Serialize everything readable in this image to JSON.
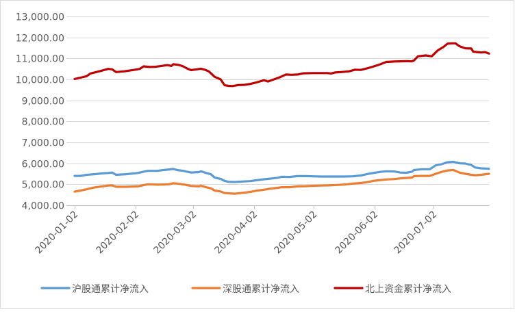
{
  "chart_data": {
    "type": "line",
    "title": "",
    "xlabel": "",
    "ylabel": "",
    "ylim": [
      4000,
      13000
    ],
    "y_ticks": [
      4000,
      5000,
      6000,
      7000,
      8000,
      9000,
      10000,
      11000,
      12000,
      13000
    ],
    "y_tick_labels": [
      "4,000.00",
      "5,000.00",
      "6,000.00",
      "7,000.00",
      "8,000.00",
      "9,000.00",
      "10,000.00",
      "11,000.00",
      "12,000.00",
      "13,000.00"
    ],
    "x_range": [
      "2020-01-02",
      "2020-07-30"
    ],
    "x_ticks": [
      "2020-01-02",
      "2020-02-02",
      "2020-03-02",
      "2020-04-02",
      "2020-05-02",
      "2020-06-02",
      "2020-07-02"
    ],
    "grid": "horizontal",
    "legend_position": "bottom",
    "series": [
      {
        "name": "沪股通累计净流入",
        "color": "#5B9BD5",
        "points": [
          [
            "2020-01-02",
            5400
          ],
          [
            "2020-01-05",
            5400
          ],
          [
            "2020-01-08",
            5450
          ],
          [
            "2020-01-12",
            5480
          ],
          [
            "2020-01-16",
            5520
          ],
          [
            "2020-01-19",
            5540
          ],
          [
            "2020-01-21",
            5560
          ],
          [
            "2020-01-23",
            5450
          ],
          [
            "2020-01-28",
            5480
          ],
          [
            "2020-02-03",
            5540
          ],
          [
            "2020-02-06",
            5600
          ],
          [
            "2020-02-08",
            5640
          ],
          [
            "2020-02-13",
            5640
          ],
          [
            "2020-02-16",
            5680
          ],
          [
            "2020-02-19",
            5710
          ],
          [
            "2020-02-21",
            5730
          ],
          [
            "2020-02-23",
            5680
          ],
          [
            "2020-02-26",
            5640
          ],
          [
            "2020-03-01",
            5560
          ],
          [
            "2020-03-05",
            5580
          ],
          [
            "2020-03-06",
            5620
          ],
          [
            "2020-03-09",
            5530
          ],
          [
            "2020-03-11",
            5480
          ],
          [
            "2020-03-13",
            5320
          ],
          [
            "2020-03-16",
            5260
          ],
          [
            "2020-03-18",
            5160
          ],
          [
            "2020-03-20",
            5120
          ],
          [
            "2020-03-23",
            5110
          ],
          [
            "2020-03-27",
            5130
          ],
          [
            "2020-03-31",
            5150
          ],
          [
            "2020-04-03",
            5190
          ],
          [
            "2020-04-07",
            5240
          ],
          [
            "2020-04-10",
            5270
          ],
          [
            "2020-04-14",
            5310
          ],
          [
            "2020-04-16",
            5360
          ],
          [
            "2020-04-20",
            5350
          ],
          [
            "2020-04-24",
            5390
          ],
          [
            "2020-04-28",
            5390
          ],
          [
            "2020-05-02",
            5380
          ],
          [
            "2020-05-06",
            5370
          ],
          [
            "2020-05-10",
            5370
          ],
          [
            "2020-05-14",
            5370
          ],
          [
            "2020-05-18",
            5370
          ],
          [
            "2020-05-22",
            5380
          ],
          [
            "2020-05-26",
            5420
          ],
          [
            "2020-05-29",
            5480
          ],
          [
            "2020-06-02",
            5550
          ],
          [
            "2020-06-05",
            5590
          ],
          [
            "2020-06-08",
            5620
          ],
          [
            "2020-06-12",
            5610
          ],
          [
            "2020-06-15",
            5560
          ],
          [
            "2020-06-18",
            5550
          ],
          [
            "2020-06-21",
            5600
          ],
          [
            "2020-06-22",
            5680
          ],
          [
            "2020-06-26",
            5720
          ],
          [
            "2020-06-30",
            5720
          ],
          [
            "2020-07-03",
            5900
          ],
          [
            "2020-07-06",
            5960
          ],
          [
            "2020-07-09",
            6050
          ],
          [
            "2020-07-12",
            6070
          ],
          [
            "2020-07-15",
            6000
          ],
          [
            "2020-07-18",
            5990
          ],
          [
            "2020-07-21",
            5920
          ],
          [
            "2020-07-23",
            5800
          ],
          [
            "2020-07-26",
            5760
          ],
          [
            "2020-07-30",
            5740
          ]
        ]
      },
      {
        "name": "深股通累计净流入",
        "color": "#ED7D31",
        "points": [
          [
            "2020-01-02",
            4650
          ],
          [
            "2020-01-05",
            4700
          ],
          [
            "2020-01-08",
            4760
          ],
          [
            "2020-01-12",
            4850
          ],
          [
            "2020-01-16",
            4900
          ],
          [
            "2020-01-19",
            4940
          ],
          [
            "2020-01-21",
            4950
          ],
          [
            "2020-01-23",
            4880
          ],
          [
            "2020-01-28",
            4880
          ],
          [
            "2020-02-03",
            4900
          ],
          [
            "2020-02-06",
            4960
          ],
          [
            "2020-02-08",
            5000
          ],
          [
            "2020-02-13",
            4980
          ],
          [
            "2020-02-16",
            4990
          ],
          [
            "2020-02-19",
            5000
          ],
          [
            "2020-02-21",
            5050
          ],
          [
            "2020-02-24",
            5020
          ],
          [
            "2020-02-27",
            4980
          ],
          [
            "2020-03-01",
            4920
          ],
          [
            "2020-03-05",
            4900
          ],
          [
            "2020-03-06",
            4930
          ],
          [
            "2020-03-09",
            4850
          ],
          [
            "2020-03-11",
            4810
          ],
          [
            "2020-03-13",
            4700
          ],
          [
            "2020-03-16",
            4660
          ],
          [
            "2020-03-18",
            4580
          ],
          [
            "2020-03-20",
            4570
          ],
          [
            "2020-03-23",
            4550
          ],
          [
            "2020-03-27",
            4590
          ],
          [
            "2020-03-31",
            4640
          ],
          [
            "2020-04-03",
            4690
          ],
          [
            "2020-04-07",
            4740
          ],
          [
            "2020-04-10",
            4790
          ],
          [
            "2020-04-14",
            4830
          ],
          [
            "2020-04-16",
            4860
          ],
          [
            "2020-04-20",
            4860
          ],
          [
            "2020-04-24",
            4900
          ],
          [
            "2020-04-28",
            4910
          ],
          [
            "2020-05-02",
            4930
          ],
          [
            "2020-05-06",
            4940
          ],
          [
            "2020-05-10",
            4950
          ],
          [
            "2020-05-14",
            4970
          ],
          [
            "2020-05-18",
            4990
          ],
          [
            "2020-05-22",
            5030
          ],
          [
            "2020-05-26",
            5060
          ],
          [
            "2020-05-29",
            5100
          ],
          [
            "2020-06-02",
            5170
          ],
          [
            "2020-06-05",
            5200
          ],
          [
            "2020-06-08",
            5230
          ],
          [
            "2020-06-12",
            5250
          ],
          [
            "2020-06-15",
            5280
          ],
          [
            "2020-06-18",
            5300
          ],
          [
            "2020-06-21",
            5320
          ],
          [
            "2020-06-22",
            5390
          ],
          [
            "2020-06-26",
            5400
          ],
          [
            "2020-06-30",
            5400
          ],
          [
            "2020-07-03",
            5500
          ],
          [
            "2020-07-06",
            5590
          ],
          [
            "2020-07-09",
            5660
          ],
          [
            "2020-07-12",
            5680
          ],
          [
            "2020-07-15",
            5560
          ],
          [
            "2020-07-18",
            5500
          ],
          [
            "2020-07-21",
            5450
          ],
          [
            "2020-07-23",
            5430
          ],
          [
            "2020-07-26",
            5450
          ],
          [
            "2020-07-30",
            5500
          ]
        ]
      },
      {
        "name": "北上资金累计净流入",
        "color": "#C00000",
        "points": [
          [
            "2020-01-02",
            10020
          ],
          [
            "2020-01-05",
            10080
          ],
          [
            "2020-01-08",
            10150
          ],
          [
            "2020-01-10",
            10280
          ],
          [
            "2020-01-13",
            10350
          ],
          [
            "2020-01-16",
            10420
          ],
          [
            "2020-01-19",
            10500
          ],
          [
            "2020-01-21",
            10480
          ],
          [
            "2020-01-23",
            10350
          ],
          [
            "2020-01-27",
            10380
          ],
          [
            "2020-02-01",
            10450
          ],
          [
            "2020-02-04",
            10500
          ],
          [
            "2020-02-06",
            10620
          ],
          [
            "2020-02-09",
            10590
          ],
          [
            "2020-02-12",
            10600
          ],
          [
            "2020-02-15",
            10640
          ],
          [
            "2020-02-18",
            10680
          ],
          [
            "2020-02-20",
            10640
          ],
          [
            "2020-02-21",
            10720
          ],
          [
            "2020-02-24",
            10680
          ],
          [
            "2020-02-26",
            10620
          ],
          [
            "2020-02-28",
            10520
          ],
          [
            "2020-03-01",
            10440
          ],
          [
            "2020-03-04",
            10480
          ],
          [
            "2020-03-06",
            10510
          ],
          [
            "2020-03-08",
            10460
          ],
          [
            "2020-03-10",
            10380
          ],
          [
            "2020-03-13",
            10120
          ],
          [
            "2020-03-16",
            10000
          ],
          [
            "2020-03-18",
            9720
          ],
          [
            "2020-03-20",
            9690
          ],
          [
            "2020-03-22",
            9680
          ],
          [
            "2020-03-25",
            9730
          ],
          [
            "2020-03-28",
            9740
          ],
          [
            "2020-03-31",
            9780
          ],
          [
            "2020-04-03",
            9850
          ],
          [
            "2020-04-07",
            9960
          ],
          [
            "2020-04-09",
            9900
          ],
          [
            "2020-04-12",
            10000
          ],
          [
            "2020-04-15",
            10100
          ],
          [
            "2020-04-18",
            10230
          ],
          [
            "2020-04-21",
            10220
          ],
          [
            "2020-04-24",
            10230
          ],
          [
            "2020-04-27",
            10290
          ],
          [
            "2020-05-02",
            10300
          ],
          [
            "2020-05-06",
            10300
          ],
          [
            "2020-05-09",
            10300
          ],
          [
            "2020-05-11",
            10280
          ],
          [
            "2020-05-13",
            10330
          ],
          [
            "2020-05-16",
            10350
          ],
          [
            "2020-05-20",
            10380
          ],
          [
            "2020-05-23",
            10460
          ],
          [
            "2020-05-26",
            10450
          ],
          [
            "2020-05-29",
            10520
          ],
          [
            "2020-06-01",
            10600
          ],
          [
            "2020-06-05",
            10720
          ],
          [
            "2020-06-08",
            10830
          ],
          [
            "2020-06-12",
            10850
          ],
          [
            "2020-06-15",
            10860
          ],
          [
            "2020-06-18",
            10870
          ],
          [
            "2020-06-21",
            10860
          ],
          [
            "2020-06-22",
            10900
          ],
          [
            "2020-06-24",
            11100
          ],
          [
            "2020-06-28",
            11140
          ],
          [
            "2020-07-01",
            11100
          ],
          [
            "2020-07-04",
            11380
          ],
          [
            "2020-07-07",
            11550
          ],
          [
            "2020-07-09",
            11700
          ],
          [
            "2020-07-11",
            11720
          ],
          [
            "2020-07-13",
            11720
          ],
          [
            "2020-07-15",
            11580
          ],
          [
            "2020-07-18",
            11480
          ],
          [
            "2020-07-21",
            11470
          ],
          [
            "2020-07-22",
            11320
          ],
          [
            "2020-07-26",
            11280
          ],
          [
            "2020-07-28",
            11300
          ],
          [
            "2020-07-30",
            11230
          ]
        ]
      }
    ]
  }
}
